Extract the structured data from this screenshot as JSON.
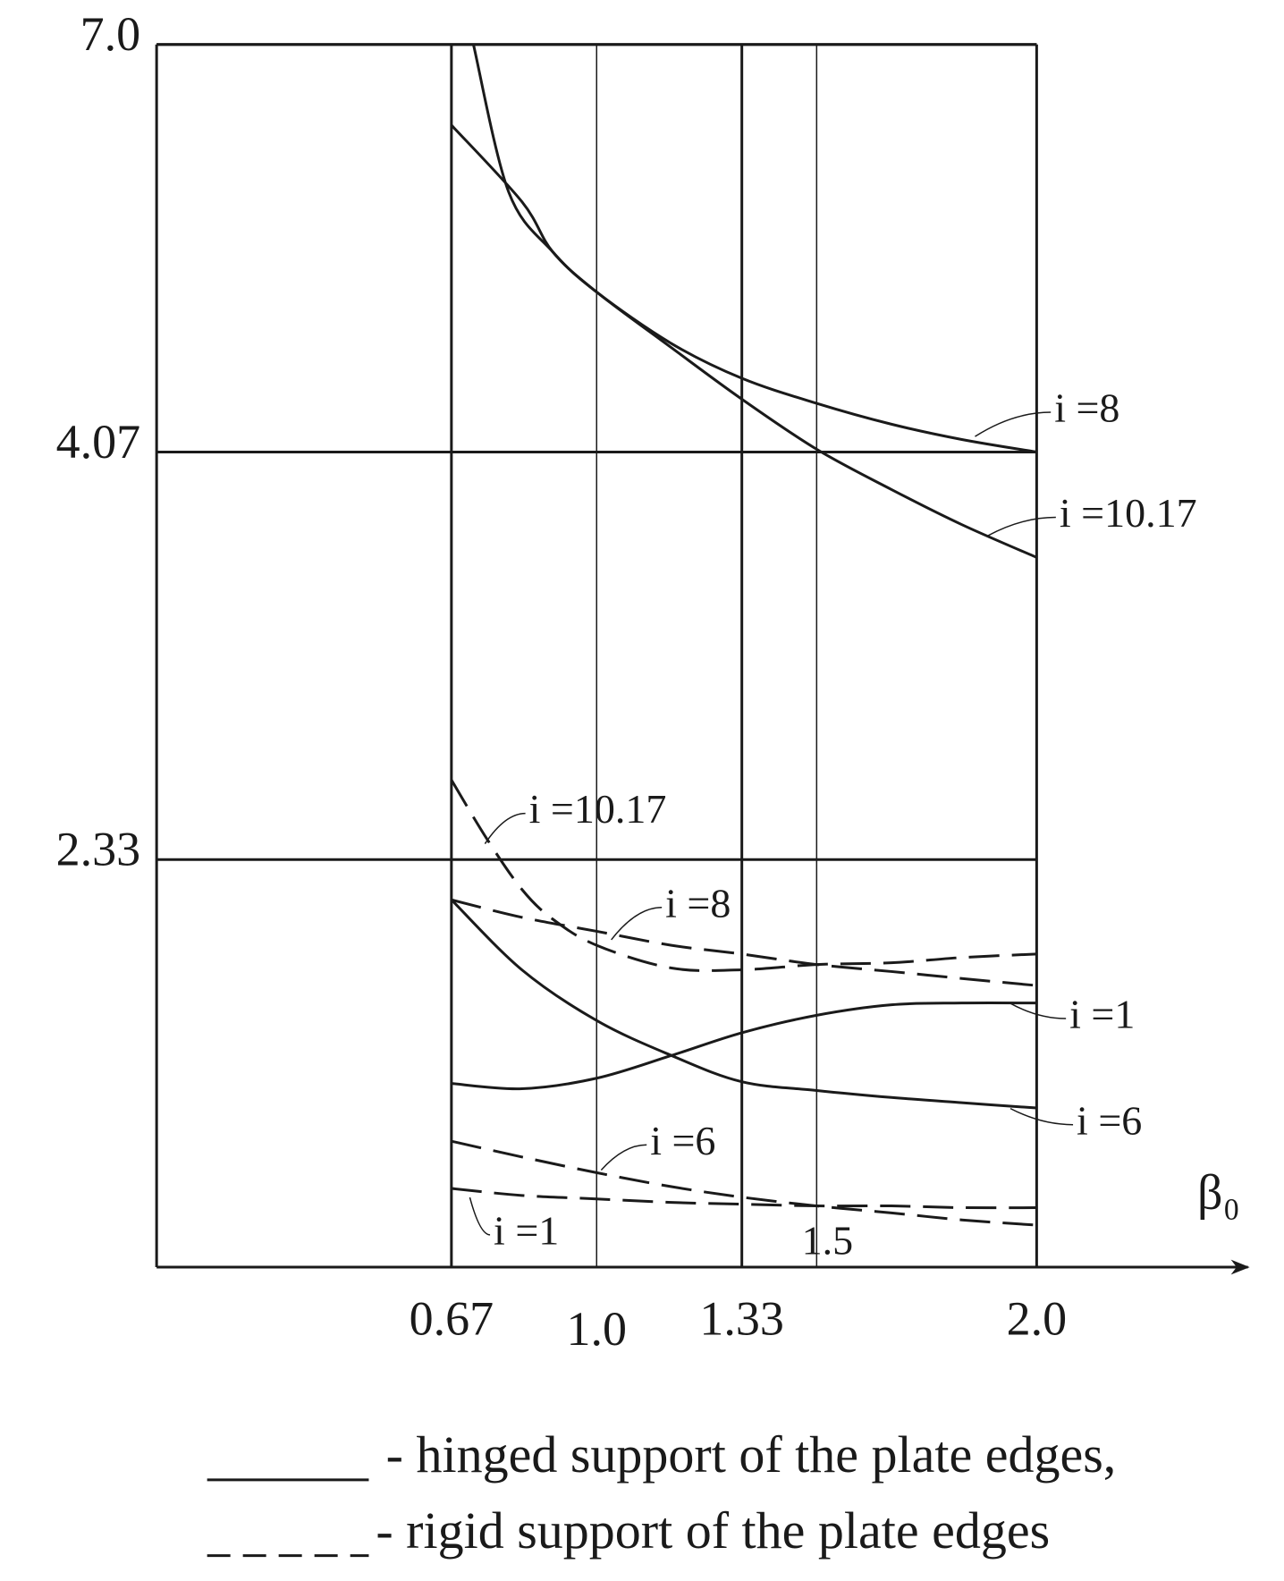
{
  "chart_data": {
    "type": "line",
    "xlabel": "β₀",
    "xlim": [
      0,
      2
    ],
    "ylim": [
      0,
      7
    ],
    "xticks": [
      0.67,
      1.33,
      {
        "value": 2,
        "label": "2.0"
      }
    ],
    "xticks_minor": [
      {
        "value": 1,
        "label": "1.0"
      },
      1.5
    ],
    "yticks": [
      2.33,
      4.07,
      {
        "value": 7,
        "label": "7.0"
      }
    ],
    "y_scale": "piecewise-equal-spacing",
    "grid": true,
    "color": "#1a1a1a",
    "series": [
      {
        "name": "i =8",
        "dash": false,
        "x": [
          0.72,
          0.8,
          0.9,
          1.0,
          1.17,
          1.33,
          1.5,
          1.67,
          1.83,
          2.0
        ],
        "values": [
          7.0,
          5.94,
          5.51,
          5.22,
          4.85,
          4.6,
          4.42,
          4.27,
          4.16,
          4.07
        ]
      },
      {
        "name": "i =10.17",
        "dash": false,
        "x": [
          0.67,
          0.83,
          0.9,
          1.0,
          1.17,
          1.33,
          1.5,
          1.67,
          1.83,
          2.0
        ],
        "values": [
          6.42,
          5.87,
          5.51,
          5.22,
          4.82,
          4.45,
          4.09,
          3.91,
          3.76,
          3.62
        ]
      },
      {
        "name": "i =10.17",
        "dash": true,
        "x": [
          0.67,
          0.75,
          0.83,
          0.9,
          1.0,
          1.17,
          1.33,
          1.5,
          1.67,
          1.83,
          2.0
        ],
        "values": [
          2.67,
          2.42,
          2.16,
          1.99,
          1.84,
          1.71,
          1.7,
          1.73,
          1.74,
          1.77,
          1.79
        ]
      },
      {
        "name": "i =8",
        "dash": true,
        "x": [
          0.67,
          0.83,
          1.0,
          1.17,
          1.33,
          1.5,
          1.67,
          1.83,
          2.0
        ],
        "values": [
          2.1,
          2.0,
          1.92,
          1.84,
          1.79,
          1.73,
          1.69,
          1.65,
          1.61
        ]
      },
      {
        "name": "i =1",
        "dash": false,
        "x": [
          0.67,
          0.83,
          1.0,
          1.17,
          1.33,
          1.5,
          1.67,
          1.83,
          2.0
        ],
        "values": [
          1.05,
          1.02,
          1.08,
          1.21,
          1.34,
          1.44,
          1.5,
          1.51,
          1.51
        ]
      },
      {
        "name": "i =6",
        "dash": false,
        "x": [
          0.67,
          0.83,
          1.0,
          1.17,
          1.33,
          1.5,
          1.67,
          1.83,
          2.0
        ],
        "values": [
          2.1,
          1.7,
          1.41,
          1.21,
          1.06,
          1.01,
          0.97,
          0.94,
          0.91
        ]
      },
      {
        "name": "i =6",
        "dash": true,
        "x": [
          0.67,
          0.83,
          1.0,
          1.17,
          1.33,
          1.5,
          1.67,
          1.83,
          2.0
        ],
        "values": [
          0.72,
          0.63,
          0.54,
          0.46,
          0.4,
          0.35,
          0.31,
          0.27,
          0.24
        ]
      },
      {
        "name": "i =1",
        "dash": true,
        "x": [
          0.67,
          0.83,
          1.0,
          1.17,
          1.33,
          1.5,
          1.67,
          1.83,
          2.0
        ],
        "values": [
          0.45,
          0.41,
          0.39,
          0.37,
          0.36,
          0.35,
          0.35,
          0.34,
          0.34
        ]
      }
    ],
    "legend": [
      {
        "label": "- hinged support of the plate edges,",
        "dash": false
      },
      {
        "label": "- rigid support of the plate edges",
        "dash": true
      }
    ]
  }
}
